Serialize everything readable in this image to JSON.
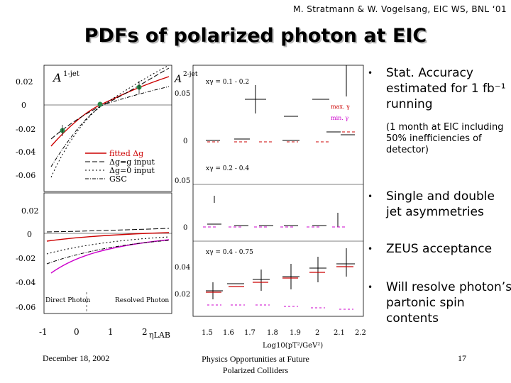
{
  "header": {
    "credit": "M. Stratmann & W. Vogelsang, EIC WS, BNL ‘01",
    "title": "PDFs of polarized photon at EIC"
  },
  "left_plot": {
    "top_label": "A",
    "top_sup": "1-jet",
    "y_ticks_top": [
      "0.02",
      "0",
      "-0.02",
      "-0.04",
      "-0.06"
    ],
    "y_ticks_bottom": [
      "0.02",
      "0",
      "-0.02",
      "-0.04",
      "-0.06"
    ],
    "x_ticks": [
      "-1",
      "0",
      "1",
      "2"
    ],
    "x_label": "ηLAB",
    "legend": [
      "fitted Δg",
      "Δg=g input",
      "Δg=0 input",
      "GSC"
    ],
    "direct_label": "Direct Photon",
    "resolved_label": "Resolved Photon",
    "colors": {
      "fitted": "#cc0000",
      "lower_curve": "#cc00cc",
      "points": "#2a8a4a"
    }
  },
  "right_plot": {
    "top_label": "A",
    "top_sup": "2-jet",
    "y_ticks_1": [
      "0.05",
      "0"
    ],
    "y_ticks_2": [
      "0.05",
      "0"
    ],
    "y_ticks_3": [
      "0.04",
      "0.02"
    ],
    "panel_labels": [
      "xγ = 0.1 - 0.2",
      "xγ = 0.2 - 0.4",
      "xγ = 0.4 - 0.75"
    ],
    "max_labels": [
      "max. γ",
      "min. γ"
    ],
    "x_ticks": [
      "1.5",
      "1.6",
      "1.7",
      "1.8",
      "1.9",
      "2",
      "2.1",
      "2.2"
    ],
    "x_label": "Log10(pT²/GeV²)",
    "colors": {
      "max": "#cc0000",
      "min": "#cc00cc"
    }
  },
  "bullets": [
    {
      "text": "Stat. Accuracy estimated for 1 fb⁻¹ running",
      "sub": "(1 month at EIC including 50% inefficiencies of detector)"
    },
    {
      "text": "Single and double jet asymmetries",
      "sub": ""
    },
    {
      "text": "ZEUS acceptance",
      "sub": ""
    },
    {
      "text": "Will resolve photon’s partonic spin contents",
      "sub": ""
    }
  ],
  "footer": {
    "date": "December 18, 2002",
    "center_line1": "Physics Opportunities at Future",
    "center_line2": "Polarized Colliders",
    "page": "17"
  }
}
